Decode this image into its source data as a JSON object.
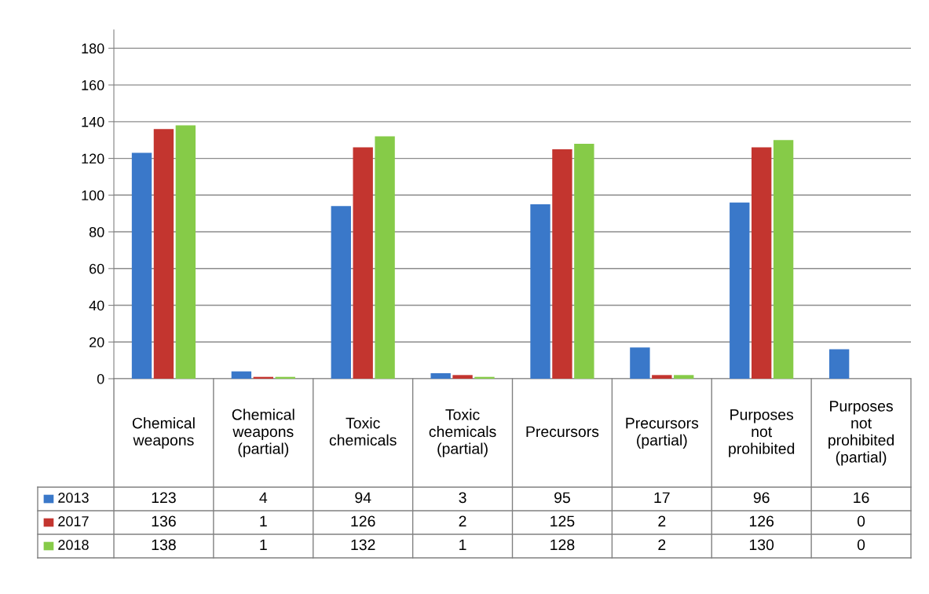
{
  "chart_data": {
    "type": "bar",
    "categories": [
      "Chemical weapons",
      "Chemical weapons (partial)",
      "Toxic chemicals",
      "Toxic chemicals (partial)",
      "Precursors",
      "Precursors (partial)",
      "Purposes not prohibited",
      "Purposes not prohibited (partial)"
    ],
    "series": [
      {
        "name": "2013",
        "color": "#3a78c9",
        "values": [
          123,
          4,
          94,
          3,
          95,
          17,
          96,
          16
        ]
      },
      {
        "name": "2017",
        "color": "#c3352f",
        "values": [
          136,
          1,
          126,
          2,
          125,
          2,
          126,
          0
        ]
      },
      {
        "name": "2018",
        "color": "#86cb48",
        "values": [
          138,
          1,
          132,
          1,
          128,
          2,
          130,
          0
        ]
      }
    ],
    "ylim": [
      0,
      190
    ],
    "yticks": [
      0,
      20,
      40,
      60,
      80,
      100,
      120,
      140,
      160,
      180
    ],
    "grid": "y",
    "data_labels": true,
    "legend": "bottom left"
  }
}
